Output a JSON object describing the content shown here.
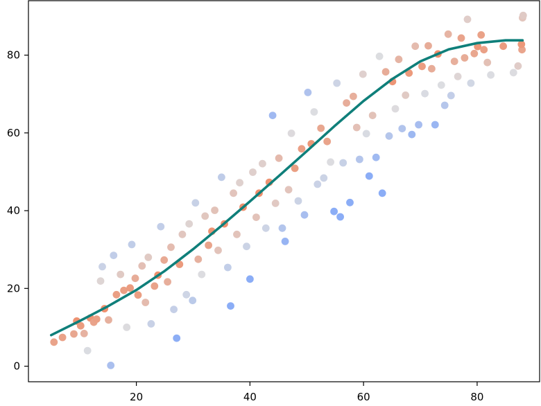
{
  "chart_data": {
    "type": "scatter",
    "title": "",
    "xlabel": "",
    "ylabel": "",
    "xlim": [
      1,
      91
    ],
    "ylim": [
      -4,
      94
    ],
    "xticks": [
      20,
      40,
      60,
      80
    ],
    "yticks": [
      0,
      20,
      40,
      60,
      80
    ],
    "tick_labels_x": [
      "20",
      "40",
      "60",
      "80"
    ],
    "tick_labels_y": [
      "0",
      "20",
      "40",
      "60",
      "80"
    ],
    "grid": false,
    "legend": "none",
    "colors": {
      "far": "#8badf6",
      "neutral": "#dcdde1",
      "near": "#ee8f6c",
      "curve": "#0f7f7a"
    },
    "fit_line": {
      "name": "",
      "x": [
        5,
        10,
        15,
        20,
        25,
        30,
        35,
        40,
        45,
        50,
        55,
        60,
        65,
        70,
        75,
        80,
        85,
        88
      ],
      "y": [
        8,
        11.6,
        15.4,
        19.6,
        24.5,
        30.1,
        36.1,
        42.4,
        48.8,
        55.3,
        61.9,
        68.2,
        73.8,
        78.4,
        81.5,
        83.1,
        83.8,
        83.8
      ]
    },
    "series": [
      {
        "name": "",
        "points": [
          [
            5.5,
            6.2
          ],
          [
            7,
            7.4
          ],
          [
            9,
            8.3
          ],
          [
            9.5,
            11.6
          ],
          [
            10.2,
            10.4
          ],
          [
            10.8,
            8.4
          ],
          [
            11.4,
            4
          ],
          [
            11.9,
            12.4
          ],
          [
            12.5,
            11.3
          ],
          [
            13,
            12.1
          ],
          [
            13.7,
            21.9
          ],
          [
            14,
            25.6
          ],
          [
            14.4,
            14.8
          ],
          [
            15.1,
            11.9
          ],
          [
            15.5,
            0.2
          ],
          [
            16,
            28.5
          ],
          [
            16.5,
            18.4
          ],
          [
            17.2,
            23.6
          ],
          [
            17.8,
            19.5
          ],
          [
            18.3,
            10
          ],
          [
            18.9,
            20.1
          ],
          [
            19.2,
            31.3
          ],
          [
            19.8,
            22.6
          ],
          [
            20.3,
            18.3
          ],
          [
            21,
            25.8
          ],
          [
            21.6,
            16.4
          ],
          [
            22.1,
            28
          ],
          [
            22.6,
            10.9
          ],
          [
            23.2,
            20.6
          ],
          [
            23.8,
            23.4
          ],
          [
            24.3,
            35.9
          ],
          [
            24.9,
            27.3
          ],
          [
            25.5,
            21.7
          ],
          [
            26.1,
            30.6
          ],
          [
            26.6,
            14.6
          ],
          [
            27.1,
            7.2
          ],
          [
            27.6,
            26.2
          ],
          [
            28.1,
            33.9
          ],
          [
            28.8,
            18.4
          ],
          [
            29.3,
            36.6
          ],
          [
            29.9,
            16.9
          ],
          [
            30.4,
            42
          ],
          [
            30.9,
            27.5
          ],
          [
            31.5,
            23.6
          ],
          [
            32.1,
            38.6
          ],
          [
            32.7,
            31.1
          ],
          [
            33.3,
            34.7
          ],
          [
            33.8,
            40.1
          ],
          [
            34.4,
            29.8
          ],
          [
            35,
            48.6
          ],
          [
            35.5,
            36.6
          ],
          [
            36.1,
            25.4
          ],
          [
            36.6,
            15.5
          ],
          [
            37.1,
            44.5
          ],
          [
            37.7,
            33.9
          ],
          [
            38.2,
            47.2
          ],
          [
            38.8,
            40.9
          ],
          [
            39.4,
            30.8
          ],
          [
            40,
            22.4
          ],
          [
            40.5,
            49.9
          ],
          [
            41.1,
            38.3
          ],
          [
            41.6,
            44.5
          ],
          [
            42.2,
            52.1
          ],
          [
            42.8,
            35.5
          ],
          [
            43.4,
            47.3
          ],
          [
            44,
            64.5
          ],
          [
            44.5,
            41.9
          ],
          [
            45.1,
            53.5
          ],
          [
            45.7,
            35.5
          ],
          [
            46.2,
            32.1
          ],
          [
            46.8,
            45.4
          ],
          [
            47.3,
            59.9
          ],
          [
            47.9,
            50.9
          ],
          [
            48.5,
            42.5
          ],
          [
            49.1,
            55.9
          ],
          [
            49.6,
            38.9
          ],
          [
            50.2,
            70.4
          ],
          [
            50.8,
            57.2
          ],
          [
            51.3,
            65.4
          ],
          [
            51.9,
            46.8
          ],
          [
            52.5,
            61.2
          ],
          [
            53,
            48.4
          ],
          [
            53.6,
            57.8
          ],
          [
            54.2,
            52.5
          ],
          [
            54.8,
            39.8
          ],
          [
            55.3,
            72.8
          ],
          [
            55.9,
            38.4
          ],
          [
            56.4,
            52.3
          ],
          [
            57,
            67.7
          ],
          [
            57.6,
            42.1
          ],
          [
            58.2,
            69.4
          ],
          [
            58.8,
            61.4
          ],
          [
            59.3,
            53.2
          ],
          [
            59.9,
            75.1
          ],
          [
            60.5,
            59.8
          ],
          [
            61,
            48.9
          ],
          [
            61.6,
            64.5
          ],
          [
            62.2,
            53.7
          ],
          [
            62.8,
            79.7
          ],
          [
            63.3,
            44.5
          ],
          [
            63.9,
            75.7
          ],
          [
            64.5,
            59.2
          ],
          [
            65.1,
            73.2
          ],
          [
            65.6,
            66.2
          ],
          [
            66.2,
            78.9
          ],
          [
            66.8,
            61.1
          ],
          [
            67.4,
            69.7
          ],
          [
            68,
            75.4
          ],
          [
            68.5,
            59.6
          ],
          [
            69.1,
            82.3
          ],
          [
            69.7,
            62.1
          ],
          [
            70.3,
            77.1
          ],
          [
            70.8,
            70.1
          ],
          [
            71.4,
            82.4
          ],
          [
            72,
            76.5
          ],
          [
            72.6,
            62.1
          ],
          [
            73.1,
            80.3
          ],
          [
            73.7,
            72.3
          ],
          [
            74.3,
            67.1
          ],
          [
            74.9,
            85.4
          ],
          [
            75.4,
            69.6
          ],
          [
            76,
            78.4
          ],
          [
            76.6,
            74.5
          ],
          [
            77.2,
            84.4
          ],
          [
            77.8,
            79.3
          ],
          [
            78.3,
            89.2
          ],
          [
            78.9,
            72.8
          ],
          [
            79.5,
            80.4
          ],
          [
            80.1,
            82.2
          ],
          [
            80.7,
            85.2
          ],
          [
            81.2,
            81.4
          ],
          [
            81.8,
            78.1
          ],
          [
            82.4,
            74.9
          ],
          [
            84.6,
            82.3
          ],
          [
            86.4,
            75.5
          ],
          [
            87.2,
            77.2
          ],
          [
            87.9,
            81.4
          ],
          [
            88,
            89.6
          ],
          [
            88.1,
            90.2
          ],
          [
            87.8,
            82.8
          ]
        ]
      }
    ]
  }
}
